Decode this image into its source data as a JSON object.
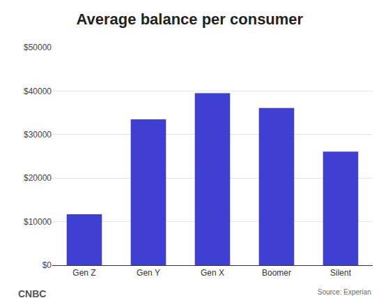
{
  "chart_data": {
    "type": "bar",
    "title": "Average balance per consumer",
    "categories": [
      "Gen Z",
      "Gen Y",
      "Gen X",
      "Boomer",
      "Silent"
    ],
    "values": [
      11700,
      33500,
      39500,
      36100,
      26100
    ],
    "color": "#3f3fd1",
    "ylim": [
      0,
      50000
    ],
    "yticks": [
      {
        "value": 0,
        "label": "$0"
      },
      {
        "value": 10000,
        "label": "$10000"
      },
      {
        "value": 20000,
        "label": "$20000"
      },
      {
        "value": 30000,
        "label": "$30000"
      },
      {
        "value": 40000,
        "label": "$40000"
      },
      {
        "value": 50000,
        "label": "$50000"
      }
    ],
    "grid": true,
    "credit": "CNBC",
    "source": "Source: Experian"
  }
}
